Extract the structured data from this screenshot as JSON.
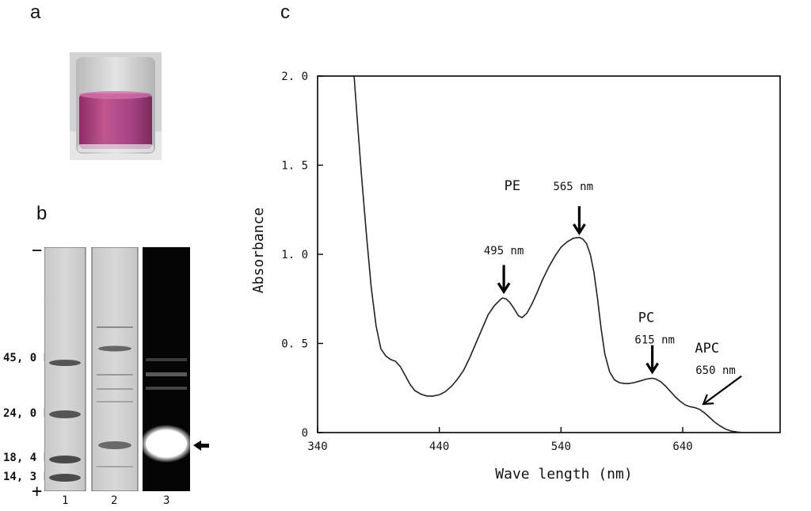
{
  "panels": {
    "a": "a",
    "b": "b",
    "c": "c"
  },
  "gel": {
    "markers": [
      "45, 0 k",
      "24, 0 k",
      "18, 4 k",
      "14, 3 k"
    ],
    "polarity_top": "−",
    "polarity_bottom": "+",
    "lanes": [
      "1",
      "2",
      "3"
    ]
  },
  "colors": {
    "vial_liquid": "#b0407f",
    "gel_lane": "#cfcfcf",
    "fluorescence_background": "#050505"
  },
  "chart_data": {
    "type": "line",
    "xlabel": "Wave length (nm)",
    "ylabel": "Absorbance",
    "xlim": [
      340,
      720
    ],
    "ylim": [
      0,
      2.0
    ],
    "x_ticks": [
      340,
      440,
      540,
      640
    ],
    "y_ticks": [
      "2. 0",
      "1. 5",
      "1. 0",
      "0. 5",
      "0"
    ],
    "y_tick_values": [
      2.0,
      1.5,
      1.0,
      0.5,
      0
    ],
    "grid": false,
    "series": [
      {
        "x": [
          370,
          373,
          376,
          380,
          384,
          388,
          392,
          396,
          400,
          404,
          408,
          412,
          416,
          420,
          425,
          430,
          435,
          440,
          445,
          450,
          455,
          460,
          465,
          470,
          475,
          480,
          485,
          490,
          492,
          495,
          498,
          501,
          505,
          508,
          512,
          516,
          520,
          525,
          530,
          535,
          540,
          545,
          550,
          555,
          558,
          561,
          564,
          567,
          570,
          573,
          576,
          580,
          584,
          588,
          592,
          596,
          600,
          605,
          610,
          615,
          618,
          622,
          626,
          630,
          634,
          638,
          642,
          646,
          650,
          654,
          658,
          662,
          666,
          670,
          675,
          680,
          685,
          690,
          700,
          710,
          720
        ],
        "y": [
          2.0,
          1.72,
          1.45,
          1.12,
          0.82,
          0.6,
          0.47,
          0.43,
          0.41,
          0.4,
          0.37,
          0.32,
          0.27,
          0.235,
          0.215,
          0.205,
          0.205,
          0.212,
          0.23,
          0.26,
          0.3,
          0.35,
          0.42,
          0.5,
          0.58,
          0.66,
          0.71,
          0.745,
          0.755,
          0.75,
          0.73,
          0.7,
          0.655,
          0.645,
          0.67,
          0.72,
          0.78,
          0.86,
          0.93,
          0.99,
          1.04,
          1.07,
          1.09,
          1.095,
          1.085,
          1.06,
          1.0,
          0.9,
          0.75,
          0.58,
          0.44,
          0.34,
          0.295,
          0.28,
          0.275,
          0.275,
          0.28,
          0.29,
          0.3,
          0.305,
          0.3,
          0.285,
          0.26,
          0.23,
          0.2,
          0.175,
          0.155,
          0.145,
          0.14,
          0.13,
          0.11,
          0.085,
          0.06,
          0.04,
          0.02,
          0.008,
          0.003,
          0.0,
          0.0,
          0.0,
          0.0
        ]
      }
    ],
    "annotations": [
      {
        "text": "PE",
        "kind": "label",
        "x": 500,
        "y": 1.36
      },
      {
        "text": "565 nm",
        "kind": "label",
        "x": 550,
        "y": 1.36
      },
      {
        "text": "495 nm",
        "kind": "label",
        "x": 493,
        "y": 1.0
      },
      {
        "text": "PC",
        "kind": "label",
        "x": 610,
        "y": 0.62
      },
      {
        "text": "615 nm",
        "kind": "label",
        "x": 617,
        "y": 0.5
      },
      {
        "text": "APC",
        "kind": "label",
        "x": 660,
        "y": 0.45
      },
      {
        "text": "650 nm",
        "kind": "label",
        "x": 667,
        "y": 0.33
      }
    ],
    "arrows": [
      {
        "name": "arrow-495",
        "x": 493,
        "y_from": 0.94,
        "y_to": 0.79,
        "dx": 0
      },
      {
        "name": "arrow-565",
        "x": 555,
        "y_from": 1.27,
        "y_to": 1.12,
        "dx": 0
      },
      {
        "name": "arrow-615",
        "x": 615,
        "y_from": 0.49,
        "y_to": 0.34,
        "dx": 0
      },
      {
        "name": "arrow-650",
        "x": 670,
        "y_from": 0.29,
        "y_to": 0.16,
        "dx": -20
      }
    ]
  }
}
